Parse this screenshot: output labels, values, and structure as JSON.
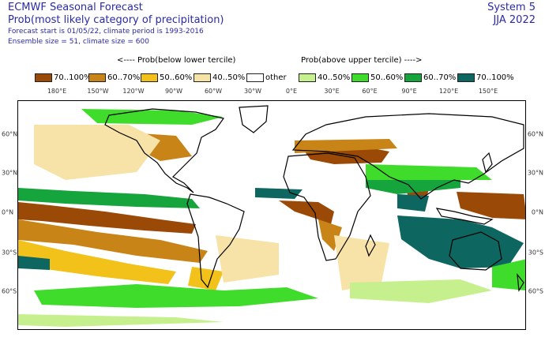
{
  "header": {
    "title": "ECMWF Seasonal Forecast",
    "subtitle": "Prob(most likely category of precipitation)",
    "forecast_info": "Forecast start is 01/05/22, climate period is 1993-2016",
    "ensemble_info": "Ensemble size = 51, climate size = 600"
  },
  "system": {
    "name": "System 5",
    "season": "JJA 2022"
  },
  "legend": {
    "below_label": "<---- Prob(below lower tercile)",
    "above_label": "Prob(above upper tercile) ---->",
    "items": [
      {
        "label": "70..100%",
        "color": "#9a4a06"
      },
      {
        "label": "60..70%",
        "color": "#c98418"
      },
      {
        "label": "50..60%",
        "color": "#f2c21a"
      },
      {
        "label": "40..50%",
        "color": "#f7e3a8"
      },
      {
        "label": "other",
        "color": "#ffffff"
      },
      {
        "label": "40..50%",
        "color": "#c6f08e"
      },
      {
        "label": "50..60%",
        "color": "#3fdc2b"
      },
      {
        "label": "60..70%",
        "color": "#16a53c"
      },
      {
        "label": "70..100%",
        "color": "#0e6660"
      }
    ]
  },
  "axes": {
    "lon_labels": [
      "180°E",
      "150°W",
      "120°W",
      "90°W",
      "60°W",
      "30°W",
      "0°E",
      "30°E",
      "60°E",
      "90°E",
      "120°E",
      "150°E"
    ],
    "lat_labels": [
      "60°N",
      "30°N",
      "0°N",
      "30°S",
      "60°S"
    ]
  }
}
